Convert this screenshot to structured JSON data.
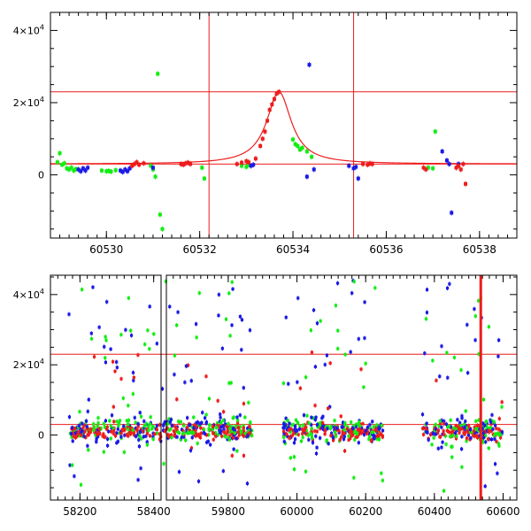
{
  "colors": {
    "green": "#11ee11",
    "blue": "#1a1ae6",
    "red": "#ee1c1c",
    "axis": "#000000"
  },
  "chart_data": [
    {
      "type": "scatter",
      "title": "",
      "xlabel": "",
      "ylabel": "",
      "xlim": [
        60528.8,
        60538.8
      ],
      "ylim": [
        -17500,
        45000
      ],
      "grid": false,
      "legend": "none",
      "yticks": [
        {
          "value": 0,
          "base": "0",
          "exp": ""
        },
        {
          "value": 20000,
          "base": "2×10",
          "exp": "4"
        },
        {
          "value": 40000,
          "base": "4×10",
          "exp": "4"
        }
      ],
      "xticks": [
        60530,
        60532,
        60534,
        60536,
        60538
      ],
      "xtick_labels": [
        "60530",
        "60532",
        "60534",
        "60536",
        "60538"
      ],
      "hlines": [
        23000,
        3000
      ],
      "vlines": [
        60532.2,
        60535.3
      ],
      "model_curve": {
        "baseline": 3000,
        "peak": 23000,
        "t0": 60533.7,
        "width": 0.32
      },
      "series": [
        {
          "color": "green",
          "points": [
            [
              60528.95,
              3500
            ],
            [
              60529.0,
              6000
            ],
            [
              60529.05,
              2800
            ],
            [
              60529.1,
              3200
            ],
            [
              60529.15,
              1800
            ],
            [
              60529.2,
              1500
            ],
            [
              60529.25,
              2000
            ],
            [
              60529.3,
              1200
            ],
            [
              60529.35,
              1600
            ],
            [
              60529.9,
              1200
            ],
            [
              60530.0,
              1000
            ],
            [
              60530.05,
              1100
            ],
            [
              60530.1,
              900
            ],
            [
              60530.2,
              1300
            ],
            [
              60530.95,
              2500
            ],
            [
              60531.0,
              1500
            ],
            [
              60531.05,
              -500
            ],
            [
              60531.1,
              28000
            ],
            [
              60531.15,
              -11000
            ],
            [
              60531.2,
              -15000
            ],
            [
              60532.05,
              2000
            ],
            [
              60532.1,
              -1000
            ],
            [
              60532.9,
              2500
            ],
            [
              60533.0,
              2200
            ],
            [
              60533.05,
              2800
            ],
            [
              60534.0,
              9800
            ],
            [
              60534.05,
              8500
            ],
            [
              60534.1,
              8000
            ],
            [
              60534.15,
              7000
            ],
            [
              60534.2,
              7500
            ],
            [
              60534.3,
              6500
            ],
            [
              60534.4,
              5000
            ],
            [
              60536.9,
              2000
            ],
            [
              60537.0,
              1800
            ],
            [
              60537.05,
              12000
            ]
          ]
        },
        {
          "color": "blue",
          "points": [
            [
              60529.4,
              1500
            ],
            [
              60529.45,
              1000
            ],
            [
              60529.5,
              1800
            ],
            [
              60529.55,
              1200
            ],
            [
              60529.6,
              2000
            ],
            [
              60530.3,
              1200
            ],
            [
              60530.35,
              800
            ],
            [
              60530.4,
              1500
            ],
            [
              60530.45,
              1000
            ],
            [
              60530.5,
              1800
            ],
            [
              60531.0,
              2000
            ],
            [
              60533.1,
              2500
            ],
            [
              60533.15,
              2800
            ],
            [
              60534.3,
              -500
            ],
            [
              60534.35,
              30500
            ],
            [
              60534.45,
              1500
            ],
            [
              60535.2,
              2500
            ],
            [
              60535.3,
              1800
            ],
            [
              60535.35,
              2200
            ],
            [
              60535.4,
              -1000
            ],
            [
              60537.2,
              6500
            ],
            [
              60537.3,
              4000
            ],
            [
              60537.35,
              3000
            ],
            [
              60537.4,
              -10500
            ],
            [
              60537.5,
              2000
            ],
            [
              60537.55,
              3000
            ]
          ]
        },
        {
          "color": "red",
          "points": [
            [
              60530.55,
              2500
            ],
            [
              60530.6,
              3000
            ],
            [
              60530.65,
              3500
            ],
            [
              60530.7,
              2800
            ],
            [
              60530.8,
              3200
            ],
            [
              60531.6,
              3000
            ],
            [
              60531.65,
              2800
            ],
            [
              60531.7,
              3200
            ],
            [
              60531.75,
              3400
            ],
            [
              60531.8,
              3000
            ],
            [
              60532.8,
              3000
            ],
            [
              60532.9,
              3400
            ],
            [
              60533.0,
              3800
            ],
            [
              60533.05,
              3500
            ],
            [
              60533.2,
              4500
            ],
            [
              60533.3,
              8000
            ],
            [
              60533.35,
              10000
            ],
            [
              60533.4,
              12000
            ],
            [
              60533.45,
              15000
            ],
            [
              60533.5,
              18000
            ],
            [
              60533.55,
              19500
            ],
            [
              60533.6,
              21000
            ],
            [
              60533.65,
              22500
            ],
            [
              60533.7,
              23000
            ],
            [
              60535.5,
              3000
            ],
            [
              60535.6,
              2800
            ],
            [
              60535.65,
              3200
            ],
            [
              60535.7,
              3000
            ],
            [
              60536.8,
              2000
            ],
            [
              60536.85,
              1500
            ],
            [
              60537.5,
              2000
            ],
            [
              60537.55,
              2500
            ],
            [
              60537.6,
              1500
            ],
            [
              60537.65,
              3000
            ],
            [
              60537.7,
              -2500
            ]
          ]
        }
      ]
    },
    {
      "type": "scatter",
      "title": "",
      "xlabel": "",
      "ylabel": "",
      "xlim": [
        58120,
        60640
      ],
      "ylim": [
        -18500,
        45500
      ],
      "grid": false,
      "legend": "none",
      "yticks": [
        {
          "value": 0,
          "base": "0",
          "exp": ""
        },
        {
          "value": 20000,
          "base": "2×10",
          "exp": "4"
        },
        {
          "value": 40000,
          "base": "4×10",
          "exp": "4"
        }
      ],
      "xticks": [
        58200,
        58400,
        59800,
        60000,
        60200,
        60400,
        60600
      ],
      "xtick_labels": [
        "58200",
        "58400",
        "59800",
        "60000",
        "60200",
        "60400",
        "60600"
      ],
      "axis_break": "between 58400 and 59800",
      "hlines": [
        23000,
        3000
      ],
      "vlines": [
        60535
      ],
      "seasons": [
        [
          58170,
          58410
        ],
        [
          59600,
          59870
        ],
        [
          59960,
          60250
        ],
        [
          60365,
          60600
        ]
      ]
    }
  ]
}
